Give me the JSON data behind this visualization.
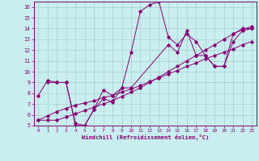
{
  "xlabel": "Windchill (Refroidissement éolien,°C)",
  "bg_color": "#c8eef0",
  "line_color": "#880077",
  "grid_color": "#aacccc",
  "xlim": [
    -0.5,
    23.5
  ],
  "ylim": [
    5,
    16.5
  ],
  "xticks": [
    0,
    1,
    2,
    3,
    4,
    5,
    6,
    7,
    8,
    9,
    10,
    11,
    12,
    13,
    14,
    15,
    16,
    17,
    18,
    19,
    20,
    21,
    22,
    23
  ],
  "yticks": [
    5,
    6,
    7,
    8,
    9,
    10,
    11,
    12,
    13,
    14,
    15,
    16
  ],
  "lines": [
    {
      "x": [
        0,
        1,
        2,
        3,
        4,
        5,
        6,
        7,
        8,
        9,
        10,
        11,
        12,
        13,
        14,
        15,
        16,
        17,
        18,
        19,
        20,
        21,
        22,
        23
      ],
      "y": [
        7.8,
        9.2,
        9.0,
        9.0,
        5.0,
        5.0,
        6.5,
        8.3,
        7.8,
        8.5,
        11.8,
        15.6,
        16.2,
        16.5,
        13.2,
        12.5,
        13.5,
        12.8,
        11.5,
        10.5,
        10.5,
        13.5,
        14.0,
        14.0
      ]
    },
    {
      "x": [
        0,
        1,
        2,
        3,
        4,
        5,
        6,
        7,
        8,
        9,
        10,
        11,
        12,
        13,
        14,
        15,
        16,
        17,
        18,
        19,
        20,
        21,
        22,
        23
      ],
      "y": [
        5.5,
        5.5,
        5.5,
        5.8,
        6.1,
        6.4,
        6.7,
        7.0,
        7.3,
        7.7,
        8.1,
        8.5,
        9.0,
        9.5,
        10.0,
        10.5,
        11.0,
        11.5,
        12.0,
        12.5,
        13.0,
        13.5,
        13.9,
        14.2
      ]
    },
    {
      "x": [
        0,
        1,
        2,
        3,
        4,
        5,
        6,
        7,
        8,
        9,
        10,
        11,
        12,
        13,
        14,
        15,
        16,
        17,
        18,
        19,
        20,
        21,
        22,
        23
      ],
      "y": [
        5.5,
        5.9,
        6.3,
        6.6,
        6.9,
        7.1,
        7.3,
        7.6,
        7.8,
        8.1,
        8.4,
        8.7,
        9.1,
        9.4,
        9.8,
        10.1,
        10.5,
        10.8,
        11.2,
        11.5,
        11.8,
        12.1,
        12.5,
        12.8
      ]
    },
    {
      "x": [
        1,
        2,
        3,
        4,
        5,
        6,
        7,
        8,
        9,
        10,
        14,
        15,
        16,
        17,
        18,
        19,
        20,
        21,
        22,
        23
      ],
      "y": [
        9.0,
        9.0,
        9.0,
        5.2,
        5.0,
        6.5,
        7.5,
        7.2,
        8.5,
        8.5,
        12.5,
        11.8,
        13.8,
        11.5,
        11.5,
        10.5,
        10.5,
        12.8,
        13.8,
        14.0
      ]
    }
  ]
}
